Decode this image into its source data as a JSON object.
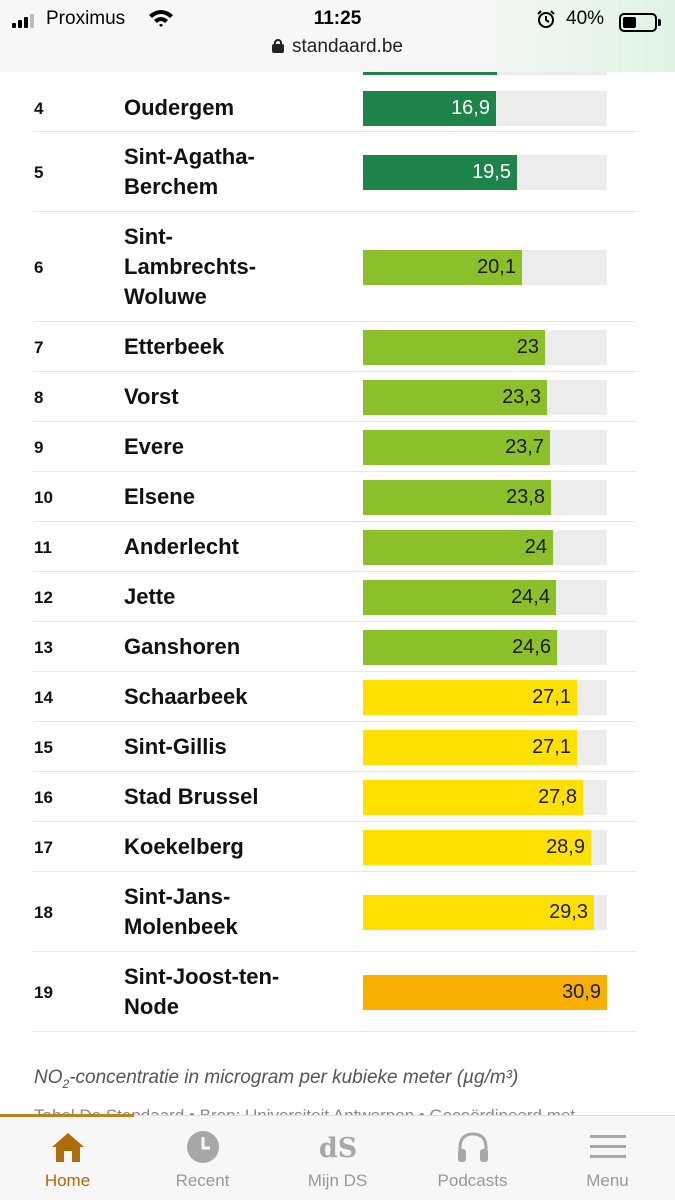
{
  "status_bar": {
    "carrier": "Proximus",
    "time": "11:25",
    "battery": "40%",
    "url": "standaard.be"
  },
  "rows": [
    {
      "rank": "4",
      "name": "Oudergem",
      "value": "16,9",
      "num": 16.9,
      "color": "#1e8449"
    },
    {
      "rank": "5",
      "name": "Sint-Agatha-Berchem",
      "value": "19,5",
      "num": 19.5,
      "color": "#1e8449"
    },
    {
      "rank": "6",
      "name": "Sint-Lambrechts-Woluwe",
      "value": "20,1",
      "num": 20.1,
      "color": "#8cc02a"
    },
    {
      "rank": "7",
      "name": "Etterbeek",
      "value": "23",
      "num": 23,
      "color": "#8cc02a"
    },
    {
      "rank": "8",
      "name": "Vorst",
      "value": "23,3",
      "num": 23.3,
      "color": "#8cc02a"
    },
    {
      "rank": "9",
      "name": "Evere",
      "value": "23,7",
      "num": 23.7,
      "color": "#8cc02a"
    },
    {
      "rank": "10",
      "name": "Elsene",
      "value": "23,8",
      "num": 23.8,
      "color": "#8cc02a"
    },
    {
      "rank": "11",
      "name": "Anderlecht",
      "value": "24",
      "num": 24,
      "color": "#8cc02a"
    },
    {
      "rank": "12",
      "name": "Jette",
      "value": "24,4",
      "num": 24.4,
      "color": "#8cc02a"
    },
    {
      "rank": "13",
      "name": "Ganshoren",
      "value": "24,6",
      "num": 24.6,
      "color": "#8cc02a"
    },
    {
      "rank": "14",
      "name": "Schaarbeek",
      "value": "27,1",
      "num": 27.1,
      "color": "#ffe000"
    },
    {
      "rank": "15",
      "name": "Sint-Gillis",
      "value": "27,1",
      "num": 27.1,
      "color": "#ffe000"
    },
    {
      "rank": "16",
      "name": "Stad Brussel",
      "value": "27,8",
      "num": 27.8,
      "color": "#ffe000"
    },
    {
      "rank": "17",
      "name": "Koekelberg",
      "value": "28,9",
      "num": 28.9,
      "color": "#ffe000"
    },
    {
      "rank": "18",
      "name": "Sint-Jans-Molenbeek",
      "value": "29,3",
      "num": 29.3,
      "color": "#ffe000"
    },
    {
      "rank": "19",
      "name": "Sint-Joost-ten-Node",
      "value": "30,9",
      "num": 30.9,
      "color": "#f7b000"
    }
  ],
  "scale_max": 30.9,
  "caption": {
    "prefix": "NO",
    "sub": "2",
    "rest": "-concentratie in microgram per kubieke meter (µg/m³)"
  },
  "source": "Tabel De Standaard • Bron: Universiteit Antwerpen • Gecoördineerd met",
  "nav": [
    {
      "label": "Home",
      "icon": "home-icon",
      "active": true
    },
    {
      "label": "Recent",
      "icon": "clock-icon",
      "active": false
    },
    {
      "label": "Mijn DS",
      "icon": "ds-logo-icon",
      "active": false
    },
    {
      "label": "Podcasts",
      "icon": "headphones-icon",
      "active": false
    },
    {
      "label": "Menu",
      "icon": "menu-icon",
      "active": false
    }
  ]
}
